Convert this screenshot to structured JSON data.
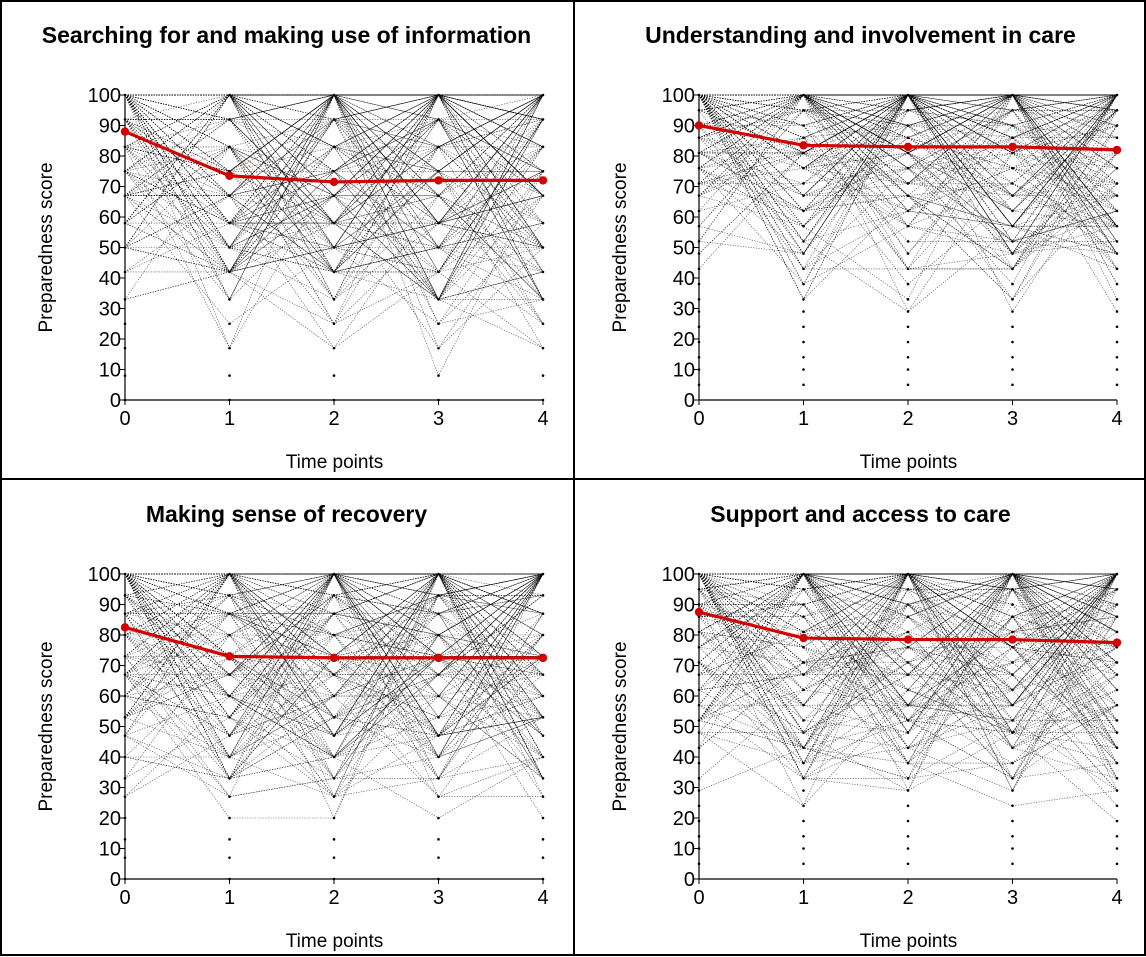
{
  "chart_data": [
    {
      "type": "line",
      "title": "Searching for and making use of information",
      "xlabel": "Time points",
      "ylabel": "Preparedness score",
      "x": [
        0,
        1,
        2,
        3,
        4
      ],
      "xlim": [
        0,
        4
      ],
      "ylim": [
        0,
        100
      ],
      "yticks": [
        0,
        10,
        20,
        30,
        40,
        50,
        60,
        70,
        80,
        90,
        100
      ],
      "xticks": [
        0,
        1,
        2,
        3,
        4
      ],
      "grid": false,
      "series": [
        {
          "values": [
            88,
            73.5,
            71.5,
            72,
            72
          ],
          "color": "#d40000"
        }
      ],
      "individual_trajectory_levels": [
        0,
        8,
        17,
        25,
        33,
        42,
        50,
        58,
        67,
        75,
        83,
        92,
        100
      ],
      "individual_trajectory_color": "#000000"
    },
    {
      "type": "line",
      "title": "Understanding and involvement in care",
      "xlabel": "Time points",
      "ylabel": "Preparedness score",
      "x": [
        0,
        1,
        2,
        3,
        4
      ],
      "xlim": [
        0,
        4
      ],
      "ylim": [
        0,
        100
      ],
      "yticks": [
        0,
        10,
        20,
        30,
        40,
        50,
        60,
        70,
        80,
        90,
        100
      ],
      "xticks": [
        0,
        1,
        2,
        3,
        4
      ],
      "grid": false,
      "series": [
        {
          "values": [
            90,
            83.5,
            83,
            83,
            82
          ],
          "color": "#d40000"
        }
      ],
      "individual_trajectory_levels": [
        5,
        10,
        14,
        19,
        24,
        29,
        33,
        38,
        43,
        48,
        52,
        57,
        62,
        67,
        71,
        76,
        81,
        86,
        90,
        95,
        100
      ],
      "individual_trajectory_color": "#000000"
    },
    {
      "type": "line",
      "title": "Making sense of recovery",
      "xlabel": "Time points",
      "ylabel": "Preparedness score",
      "x": [
        0,
        1,
        2,
        3,
        4
      ],
      "xlim": [
        0,
        4
      ],
      "ylim": [
        0,
        100
      ],
      "yticks": [
        0,
        10,
        20,
        30,
        40,
        50,
        60,
        70,
        80,
        90,
        100
      ],
      "xticks": [
        0,
        1,
        2,
        3,
        4
      ],
      "grid": false,
      "series": [
        {
          "values": [
            82.5,
            73,
            72.5,
            72.5,
            72.5
          ],
          "color": "#d40000"
        }
      ],
      "individual_trajectory_levels": [
        0,
        7,
        13,
        20,
        27,
        33,
        40,
        47,
        53,
        60,
        67,
        73,
        80,
        87,
        93,
        100
      ],
      "individual_trajectory_color": "#000000"
    },
    {
      "type": "line",
      "title": "Support and access to care",
      "xlabel": "Time points",
      "ylabel": "Preparedness score",
      "x": [
        0,
        1,
        2,
        3,
        4
      ],
      "xlim": [
        0,
        4
      ],
      "ylim": [
        0,
        100
      ],
      "yticks": [
        0,
        10,
        20,
        30,
        40,
        50,
        60,
        70,
        80,
        90,
        100
      ],
      "xticks": [
        0,
        1,
        2,
        3,
        4
      ],
      "grid": false,
      "series": [
        {
          "values": [
            87.5,
            79,
            78.5,
            78.5,
            77.5
          ],
          "color": "#d40000"
        }
      ],
      "individual_trajectory_levels": [
        5,
        10,
        14,
        19,
        24,
        29,
        33,
        38,
        43,
        48,
        52,
        57,
        62,
        67,
        71,
        76,
        81,
        86,
        90,
        95,
        100
      ],
      "individual_trajectory_color": "#000000"
    }
  ]
}
